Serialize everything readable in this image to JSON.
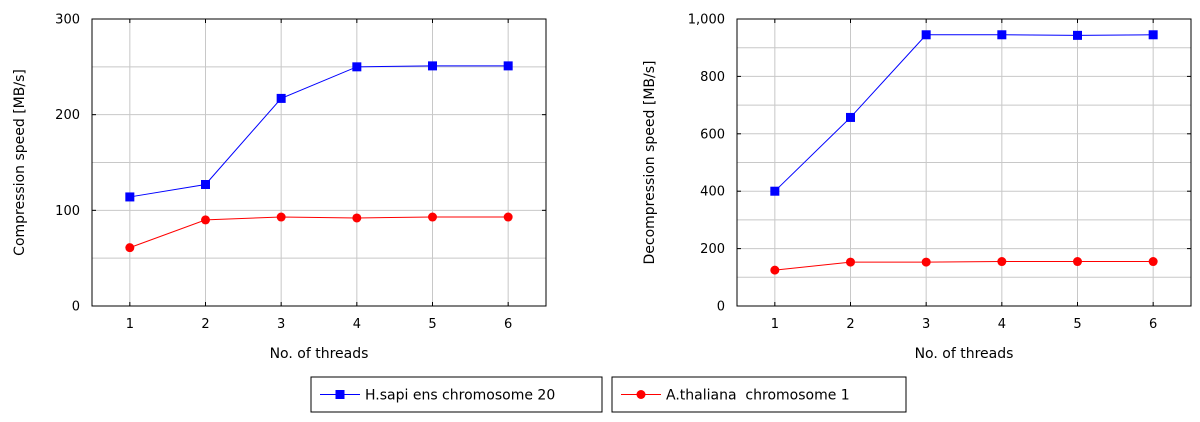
{
  "chart_data": [
    {
      "type": "line",
      "title": "",
      "xlabel": "No. of threads",
      "ylabel": "Compression speed [MB/s]",
      "x": [
        1,
        2,
        3,
        4,
        5,
        6
      ],
      "xlim": [
        0.5,
        6.5
      ],
      "ylim": [
        0,
        300
      ],
      "yticks": [
        0,
        100,
        200,
        300
      ],
      "ytick_labels": [
        "0",
        "100",
        "200",
        "300"
      ],
      "grid": true,
      "series": [
        {
          "name": "H.sapi ens chromosome 20",
          "color": "#0000ff",
          "marker": "square",
          "values": [
            114,
            127,
            217,
            250,
            251,
            251
          ]
        },
        {
          "name": "A.thaliana  chromosome 1",
          "color": "#ff0000",
          "marker": "circle",
          "values": [
            61,
            90,
            93,
            92,
            93,
            93
          ]
        }
      ]
    },
    {
      "type": "line",
      "title": "",
      "xlabel": "No. of threads",
      "ylabel": "Decompression speed [MB/s]",
      "x": [
        1,
        2,
        3,
        4,
        5,
        6
      ],
      "xlim": [
        0.5,
        6.5
      ],
      "ylim": [
        0,
        1000
      ],
      "yticks": [
        0,
        200,
        400,
        600,
        800,
        1000
      ],
      "ytick_labels": [
        "0",
        "200",
        "400",
        "600",
        "800",
        "1,000"
      ],
      "grid": true,
      "series": [
        {
          "name": "H.sapi ens chromosome 20",
          "color": "#0000ff",
          "marker": "square",
          "values": [
            400,
            657,
            945,
            945,
            943,
            945
          ]
        },
        {
          "name": "A.thaliana  chromosome 1",
          "color": "#ff0000",
          "marker": "circle",
          "values": [
            125,
            153,
            153,
            155,
            155,
            155
          ]
        }
      ]
    }
  ],
  "legend": {
    "placement": "bottom-center",
    "entries": [
      {
        "label": "H.sapi ens chromosome 20",
        "color": "#0000ff",
        "marker": "square"
      },
      {
        "label": "A.thaliana  chromosome 1",
        "color": "#ff0000",
        "marker": "circle"
      }
    ]
  }
}
